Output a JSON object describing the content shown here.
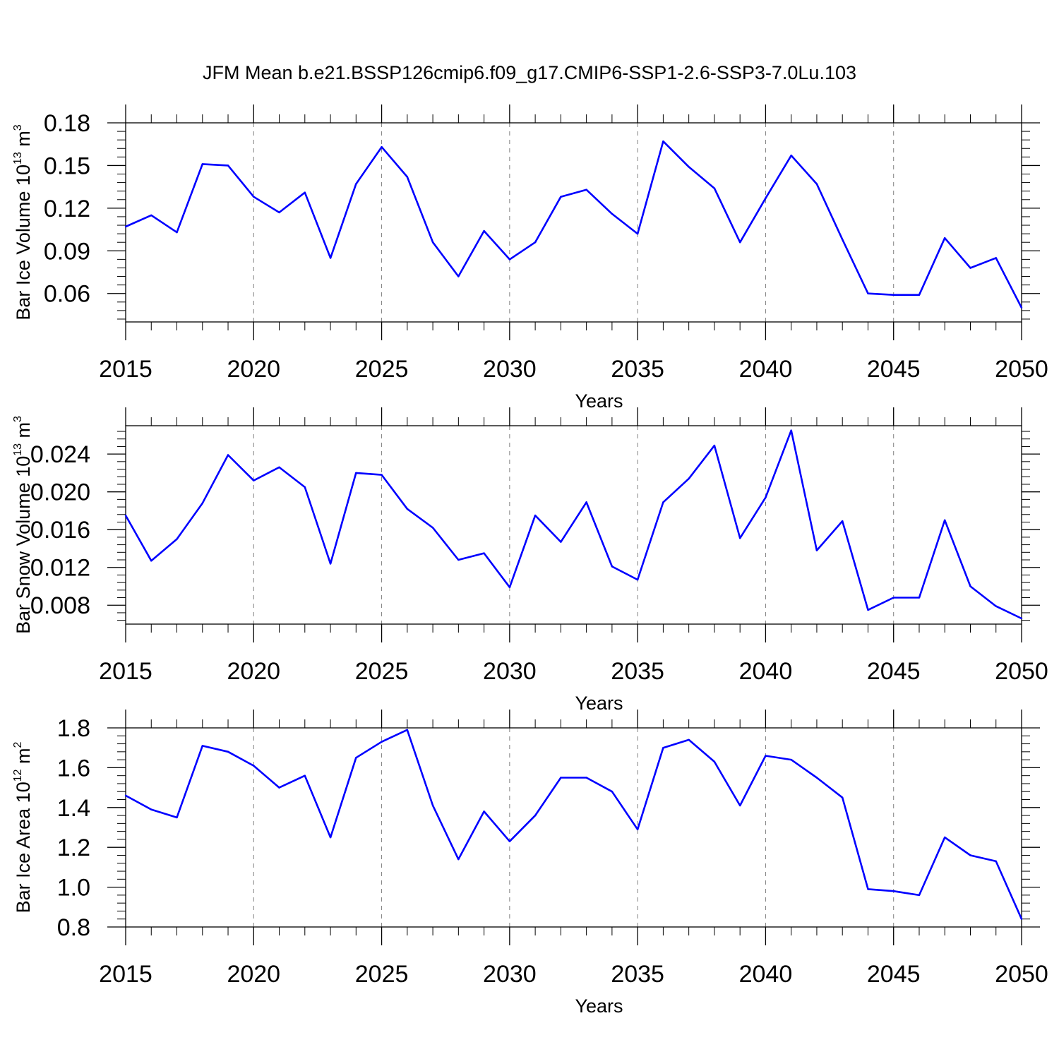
{
  "figure_title": "JFM Mean b.e21.BSSP126cmip6.f09_g17.CMIP6-SSP1-2.6-SSP3-7.0Lu.103",
  "colors": {
    "line": "#0000ff",
    "axis": "#000000",
    "grid": "#808080"
  },
  "chart_data": [
    {
      "type": "line",
      "title": "",
      "xlabel": "Years",
      "ylabel": {
        "text": "Bar Ice Volume 10",
        "exponent": "13",
        "unit": " m",
        "unit_exponent": "3"
      },
      "xlim": [
        2015,
        2050
      ],
      "ylim": [
        0.04,
        0.18
      ],
      "yticks": [
        0.06,
        0.09,
        0.12,
        0.15,
        0.18
      ],
      "ytick_labels": [
        "0.06",
        "0.09",
        "0.12",
        "0.15",
        "0.18"
      ],
      "xticks": [
        2015,
        2020,
        2025,
        2030,
        2035,
        2040,
        2045,
        2050
      ],
      "xtick_labels": [
        "2015",
        "2020",
        "2025",
        "2030",
        "2035",
        "2040",
        "2045",
        "2050"
      ],
      "x_minor_step": 1,
      "y_minor_step": 0.006,
      "grid": "vertical dashed at major x ticks",
      "x": [
        2015,
        2016,
        2017,
        2018,
        2019,
        2020,
        2021,
        2022,
        2023,
        2024,
        2025,
        2026,
        2027,
        2028,
        2029,
        2030,
        2031,
        2032,
        2033,
        2034,
        2035,
        2036,
        2037,
        2038,
        2039,
        2040,
        2041,
        2042,
        2043,
        2044,
        2045,
        2046,
        2047,
        2048,
        2049,
        2050
      ],
      "series": [
        {
          "values": [
            0.107,
            0.115,
            0.103,
            0.151,
            0.15,
            0.128,
            0.117,
            0.131,
            0.085,
            0.137,
            0.163,
            0.142,
            0.096,
            0.072,
            0.104,
            0.084,
            0.096,
            0.128,
            0.133,
            0.116,
            0.102,
            0.167,
            0.149,
            0.134,
            0.096,
            0.127,
            0.157,
            0.137,
            0.098,
            0.06,
            0.059,
            0.059,
            0.099,
            0.078,
            0.085,
            0.05
          ]
        }
      ]
    },
    {
      "type": "line",
      "title": "",
      "xlabel": "Years",
      "ylabel": {
        "text": "Bar Snow Volume 10",
        "exponent": "13",
        "unit": " m",
        "unit_exponent": "3"
      },
      "xlim": [
        2015,
        2050
      ],
      "ylim": [
        0.006,
        0.027
      ],
      "yticks": [
        0.008,
        0.012,
        0.016,
        0.02,
        0.024
      ],
      "ytick_labels": [
        "0.008",
        "0.012",
        "0.016",
        "0.020",
        "0.024"
      ],
      "xticks": [
        2015,
        2020,
        2025,
        2030,
        2035,
        2040,
        2045,
        2050
      ],
      "xtick_labels": [
        "2015",
        "2020",
        "2025",
        "2030",
        "2035",
        "2040",
        "2045",
        "2050"
      ],
      "x_minor_step": 1,
      "y_minor_step": 0.0008,
      "grid": "vertical dashed at major x ticks",
      "x": [
        2015,
        2016,
        2017,
        2018,
        2019,
        2020,
        2021,
        2022,
        2023,
        2024,
        2025,
        2026,
        2027,
        2028,
        2029,
        2030,
        2031,
        2032,
        2033,
        2034,
        2035,
        2036,
        2037,
        2038,
        2039,
        2040,
        2041,
        2042,
        2043,
        2044,
        2045,
        2046,
        2047,
        2048,
        2049,
        2050
      ],
      "series": [
        {
          "values": [
            0.0175,
            0.0127,
            0.015,
            0.0188,
            0.0239,
            0.0212,
            0.0226,
            0.0205,
            0.0124,
            0.022,
            0.0218,
            0.0182,
            0.0162,
            0.0128,
            0.0135,
            0.0099,
            0.0175,
            0.0147,
            0.0189,
            0.0121,
            0.0107,
            0.0189,
            0.0214,
            0.0249,
            0.0151,
            0.0194,
            0.0265,
            0.0138,
            0.0169,
            0.0075,
            0.0088,
            0.0088,
            0.017,
            0.01,
            0.0079,
            0.0066
          ]
        }
      ]
    },
    {
      "type": "line",
      "title": "",
      "xlabel": "Years",
      "ylabel": {
        "text": "Bar Ice Area 10",
        "exponent": "12",
        "unit": " m",
        "unit_exponent": "2"
      },
      "xlim": [
        2015,
        2050
      ],
      "ylim": [
        0.8,
        1.8
      ],
      "yticks": [
        0.8,
        1.0,
        1.2,
        1.4,
        1.6,
        1.8
      ],
      "ytick_labels": [
        "0.8",
        "1.0",
        "1.2",
        "1.4",
        "1.6",
        "1.8"
      ],
      "xticks": [
        2015,
        2020,
        2025,
        2030,
        2035,
        2040,
        2045,
        2050
      ],
      "xtick_labels": [
        "2015",
        "2020",
        "2025",
        "2030",
        "2035",
        "2040",
        "2045",
        "2050"
      ],
      "x_minor_step": 1,
      "y_minor_step": 0.04,
      "grid": "vertical dashed at major x ticks",
      "x": [
        2015,
        2016,
        2017,
        2018,
        2019,
        2020,
        2021,
        2022,
        2023,
        2024,
        2025,
        2026,
        2027,
        2028,
        2029,
        2030,
        2031,
        2032,
        2033,
        2034,
        2035,
        2036,
        2037,
        2038,
        2039,
        2040,
        2041,
        2042,
        2043,
        2044,
        2045,
        2046,
        2047,
        2048,
        2049,
        2050
      ],
      "series": [
        {
          "values": [
            1.46,
            1.39,
            1.35,
            1.71,
            1.68,
            1.61,
            1.5,
            1.56,
            1.25,
            1.65,
            1.73,
            1.79,
            1.41,
            1.14,
            1.38,
            1.23,
            1.36,
            1.55,
            1.55,
            1.48,
            1.29,
            1.7,
            1.74,
            1.63,
            1.41,
            1.66,
            1.64,
            1.55,
            1.45,
            0.99,
            0.98,
            0.96,
            1.25,
            1.16,
            1.13,
            0.84
          ]
        }
      ]
    }
  ]
}
